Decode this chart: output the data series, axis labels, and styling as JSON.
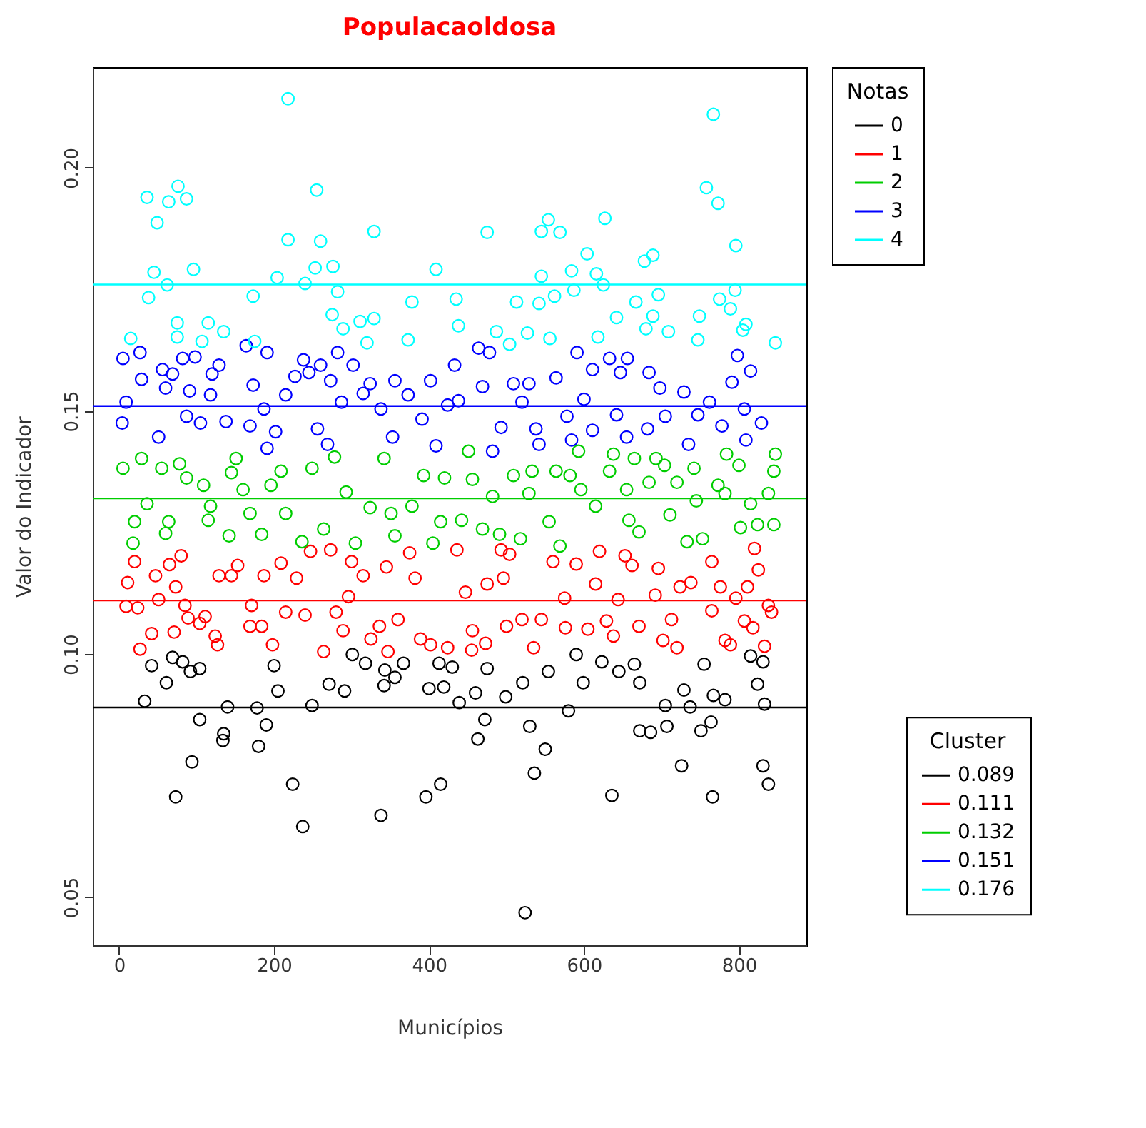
{
  "chart_data": {
    "type": "scatter",
    "title": "Populacaoldosa",
    "xlabel": "Municípios",
    "ylabel": "Valor do Indicador",
    "legend_title": "Notas",
    "legend": "right",
    "grid": false,
    "marker": "circle",
    "xlim": [
      -34,
      887
    ],
    "ylim": [
      0.0401,
      0.2207
    ],
    "xticks": [
      0,
      200,
      400,
      600,
      800
    ],
    "yticks": [
      0.05,
      {
        "value": 0.1,
        "label": "0.10"
      },
      0.15,
      {
        "value": 0.2,
        "label": "0.20"
      }
    ],
    "annotations": [
      "Cluster"
    ],
    "ref_lines": [
      {
        "axis": "y",
        "value": 0.089,
        "label": "0.089",
        "color": "#000000"
      },
      {
        "axis": "y",
        "value": 0.111,
        "label": "0.111",
        "color": "#ff0000"
      },
      {
        "axis": "y",
        "value": 0.132,
        "label": "0.132",
        "color": "#00cd00"
      },
      {
        "axis": "y",
        "value": 0.151,
        "label": "0.151",
        "color": "#0000ff"
      },
      {
        "axis": "y",
        "value": 0.176,
        "label": "0.176",
        "color": "#00ffff"
      }
    ],
    "series": [
      {
        "name": "0",
        "color": "#000000",
        "x": [
          42,
          69,
          82,
          92,
          104,
          61,
          33,
          104,
          135,
          134,
          94,
          73,
          140,
          178,
          180,
          190,
          200,
          205,
          224,
          237,
          249,
          271,
          291,
          301,
          318,
          338,
          342,
          343,
          356,
          367,
          396,
          415,
          400,
          419,
          413,
          430,
          439,
          460,
          475,
          499,
          521,
          463,
          472,
          524,
          536,
          530,
          550,
          554,
          580,
          590,
          599,
          623,
          636,
          645,
          665,
          672,
          672,
          686,
          705,
          707,
          726,
          729,
          737,
          751,
          755,
          766,
          767,
          764,
          782,
          815,
          831,
          824,
          833,
          831,
          838
        ],
        "values": [
          0.0976,
          0.0993,
          0.0984,
          0.0964,
          0.097,
          0.0941,
          0.0903,
          0.0865,
          0.0836,
          0.0822,
          0.0778,
          0.0706,
          0.0891,
          0.0889,
          0.081,
          0.0854,
          0.0976,
          0.0924,
          0.0732,
          0.0645,
          0.0894,
          0.0938,
          0.0924,
          0.0999,
          0.0981,
          0.0668,
          0.0935,
          0.0967,
          0.0952,
          0.0981,
          0.0706,
          0.0732,
          0.0929,
          0.0932,
          0.0981,
          0.0973,
          0.09,
          0.092,
          0.097,
          0.0912,
          0.0941,
          0.0825,
          0.0865,
          0.0468,
          0.0755,
          0.0851,
          0.0804,
          0.0964,
          0.0883,
          0.0999,
          0.0941,
          0.0984,
          0.0709,
          0.0964,
          0.0979,
          0.0941,
          0.0842,
          0.0839,
          0.0894,
          0.0851,
          0.077,
          0.0926,
          0.0891,
          0.0842,
          0.0979,
          0.0706,
          0.0915,
          0.086,
          0.0906,
          0.0996,
          0.0984,
          0.0938,
          0.0897,
          0.077,
          0.0732
        ]
      },
      {
        "name": "1",
        "color": "#ff0000",
        "x": [
          20,
          11,
          9,
          24,
          27,
          42,
          51,
          47,
          65,
          80,
          73,
          71,
          85,
          89,
          104,
          111,
          127,
          124,
          129,
          145,
          153,
          169,
          171,
          184,
          198,
          187,
          209,
          215,
          229,
          240,
          247,
          264,
          273,
          280,
          289,
          296,
          300,
          315,
          325,
          336,
          345,
          347,
          360,
          375,
          382,
          389,
          402,
          436,
          424,
          447,
          456,
          455,
          473,
          475,
          493,
          496,
          504,
          500,
          520,
          535,
          545,
          560,
          575,
          576,
          590,
          605,
          615,
          620,
          629,
          638,
          644,
          653,
          662,
          671,
          692,
          696,
          702,
          713,
          720,
          724,
          738,
          765,
          765,
          776,
          782,
          796,
          789,
          807,
          820,
          811,
          825,
          818,
          833,
          838,
          842
        ],
        "values": [
          0.119,
          0.1147,
          0.1098,
          0.1095,
          0.101,
          0.1042,
          0.1112,
          0.1161,
          0.1184,
          0.1202,
          0.1138,
          0.1045,
          0.11,
          0.1074,
          0.1063,
          0.1077,
          0.1019,
          0.1037,
          0.1161,
          0.1161,
          0.1182,
          0.1057,
          0.11,
          0.1057,
          0.1019,
          0.1161,
          0.1187,
          0.1086,
          0.1156,
          0.108,
          0.1211,
          0.1005,
          0.1214,
          0.1086,
          0.1048,
          0.1118,
          0.119,
          0.1161,
          0.1031,
          0.1057,
          0.1179,
          0.1005,
          0.1071,
          0.1208,
          0.1156,
          0.1031,
          0.1019,
          0.1214,
          0.1013,
          0.1127,
          0.1048,
          0.1008,
          0.1022,
          0.1144,
          0.1214,
          0.1156,
          0.1205,
          0.1057,
          0.1071,
          0.1013,
          0.1071,
          0.119,
          0.1115,
          0.1054,
          0.1185,
          0.1051,
          0.1144,
          0.1211,
          0.1068,
          0.1037,
          0.1112,
          0.1202,
          0.1182,
          0.1057,
          0.1121,
          0.1176,
          0.1028,
          0.1071,
          0.1013,
          0.1138,
          0.1147,
          0.1089,
          0.119,
          0.1138,
          0.1028,
          0.1115,
          0.1019,
          0.1068,
          0.1217,
          0.1138,
          0.1173,
          0.1054,
          0.1016,
          0.11,
          0.1086
        ]
      },
      {
        "name": "2",
        "color": "#00cd00",
        "x": [
          5,
          20,
          18,
          29,
          36,
          55,
          64,
          60,
          78,
          87,
          109,
          115,
          118,
          142,
          145,
          160,
          169,
          151,
          184,
          196,
          209,
          215,
          236,
          249,
          264,
          278,
          293,
          305,
          324,
          342,
          351,
          356,
          378,
          393,
          405,
          415,
          420,
          451,
          442,
          456,
          469,
          482,
          491,
          509,
          518,
          533,
          529,
          555,
          564,
          569,
          582,
          596,
          615,
          593,
          633,
          638,
          655,
          658,
          665,
          671,
          684,
          693,
          704,
          711,
          720,
          733,
          742,
          745,
          753,
          773,
          782,
          784,
          800,
          802,
          815,
          824,
          838,
          845,
          847,
          845
        ],
        "values": [
          0.1382,
          0.1272,
          0.1228,
          0.1402,
          0.1309,
          0.1382,
          0.1272,
          0.1248,
          0.1391,
          0.1362,
          0.1347,
          0.1275,
          0.1304,
          0.1243,
          0.1373,
          0.1338,
          0.1289,
          0.1402,
          0.1246,
          0.1347,
          0.1376,
          0.1289,
          0.1231,
          0.1382,
          0.1257,
          0.1405,
          0.1333,
          0.1228,
          0.1301,
          0.1402,
          0.1289,
          0.1243,
          0.1304,
          0.1367,
          0.1228,
          0.1272,
          0.1362,
          0.1417,
          0.1275,
          0.1359,
          0.1257,
          0.1324,
          0.1246,
          0.1367,
          0.1237,
          0.1376,
          0.133,
          0.1272,
          0.1376,
          0.1222,
          0.1367,
          0.1338,
          0.1304,
          0.1417,
          0.1376,
          0.1411,
          0.1338,
          0.1275,
          0.1402,
          0.1251,
          0.1353,
          0.1402,
          0.1388,
          0.1286,
          0.1353,
          0.1231,
          0.1382,
          0.1315,
          0.1237,
          0.1347,
          0.133,
          0.1411,
          0.1388,
          0.126,
          0.1309,
          0.1266,
          0.133,
          0.1376,
          0.1411,
          0.1266
        ]
      },
      {
        "name": "3",
        "color": "#0000ff",
        "x": [
          5,
          4,
          9,
          27,
          29,
          51,
          56,
          69,
          60,
          82,
          91,
          87,
          98,
          105,
          118,
          129,
          120,
          138,
          164,
          173,
          169,
          191,
          187,
          191,
          202,
          215,
          227,
          238,
          245,
          260,
          256,
          269,
          273,
          282,
          287,
          302,
          315,
          324,
          338,
          353,
          356,
          373,
          391,
          402,
          409,
          433,
          424,
          438,
          464,
          478,
          469,
          482,
          493,
          509,
          529,
          520,
          542,
          538,
          564,
          578,
          584,
          591,
          600,
          611,
          633,
          642,
          647,
          656,
          611,
          655,
          682,
          684,
          698,
          705,
          729,
          735,
          747,
          762,
          778,
          798,
          791,
          815,
          807,
          809,
          829
        ],
        "values": [
          0.1608,
          0.1475,
          0.1518,
          0.162,
          0.1565,
          0.1446,
          0.1585,
          0.1576,
          0.1547,
          0.1608,
          0.1541,
          0.1489,
          0.1611,
          0.1475,
          0.1533,
          0.1594,
          0.1576,
          0.1478,
          0.1634,
          0.1553,
          0.1469,
          0.162,
          0.1504,
          0.1423,
          0.1457,
          0.1533,
          0.1571,
          0.1605,
          0.1579,
          0.1594,
          0.1463,
          0.1431,
          0.1562,
          0.162,
          0.1518,
          0.1594,
          0.1536,
          0.1556,
          0.1504,
          0.1446,
          0.1562,
          0.1533,
          0.1483,
          0.1562,
          0.1428,
          0.1594,
          0.1512,
          0.1521,
          0.1629,
          0.162,
          0.155,
          0.1417,
          0.1466,
          0.1556,
          0.1556,
          0.1518,
          0.1431,
          0.1463,
          0.1568,
          0.1489,
          0.144,
          0.162,
          0.1524,
          0.1585,
          0.1608,
          0.1492,
          0.1579,
          0.1608,
          0.146,
          0.1446,
          0.1463,
          0.1579,
          0.1547,
          0.1489,
          0.1539,
          0.1431,
          0.1492,
          0.1518,
          0.1469,
          0.1614,
          0.1559,
          0.1582,
          0.1504,
          0.144,
          0.1475
        ]
      },
      {
        "name": "4",
        "color": "#00ffff",
        "x": [
          218,
          36,
          76,
          64,
          87,
          49,
          255,
          218,
          260,
          329,
          45,
          62,
          96,
          38,
          173,
          204,
          240,
          253,
          276,
          282,
          378,
          409,
          15,
          75,
          75,
          115,
          107,
          135,
          175,
          275,
          289,
          311,
          329,
          320,
          373,
          767,
          758,
          773,
          475,
          554,
          545,
          569,
          627,
          604,
          678,
          689,
          796,
          545,
          584,
          616,
          625,
          435,
          513,
          542,
          562,
          587,
          667,
          696,
          775,
          789,
          795,
          438,
          487,
          504,
          527,
          556,
          618,
          642,
          680,
          689,
          709,
          749,
          747,
          805,
          809,
          847
        ],
        "values": [
          0.2142,
          0.1939,
          0.1962,
          0.193,
          0.1936,
          0.1887,
          0.1954,
          0.1852,
          0.1849,
          0.1869,
          0.1785,
          0.1759,
          0.1791,
          0.1733,
          0.1736,
          0.1774,
          0.1762,
          0.1794,
          0.1797,
          0.1745,
          0.1724,
          0.1791,
          0.1649,
          0.1681,
          0.1652,
          0.1681,
          0.1643,
          0.1663,
          0.1643,
          0.1698,
          0.1669,
          0.1684,
          0.169,
          0.164,
          0.1646,
          0.211,
          0.1959,
          0.1927,
          0.1867,
          0.1893,
          0.1869,
          0.1867,
          0.1896,
          0.1823,
          0.1808,
          0.182,
          0.184,
          0.1777,
          0.1788,
          0.1782,
          0.1759,
          0.173,
          0.1724,
          0.1721,
          0.1736,
          0.1748,
          0.1724,
          0.1739,
          0.173,
          0.171,
          0.1748,
          0.1675,
          0.1663,
          0.1637,
          0.166,
          0.1649,
          0.1652,
          0.1692,
          0.1669,
          0.1695,
          0.1663,
          0.1695,
          0.1646,
          0.1666,
          0.1678,
          0.164
        ]
      }
    ]
  }
}
